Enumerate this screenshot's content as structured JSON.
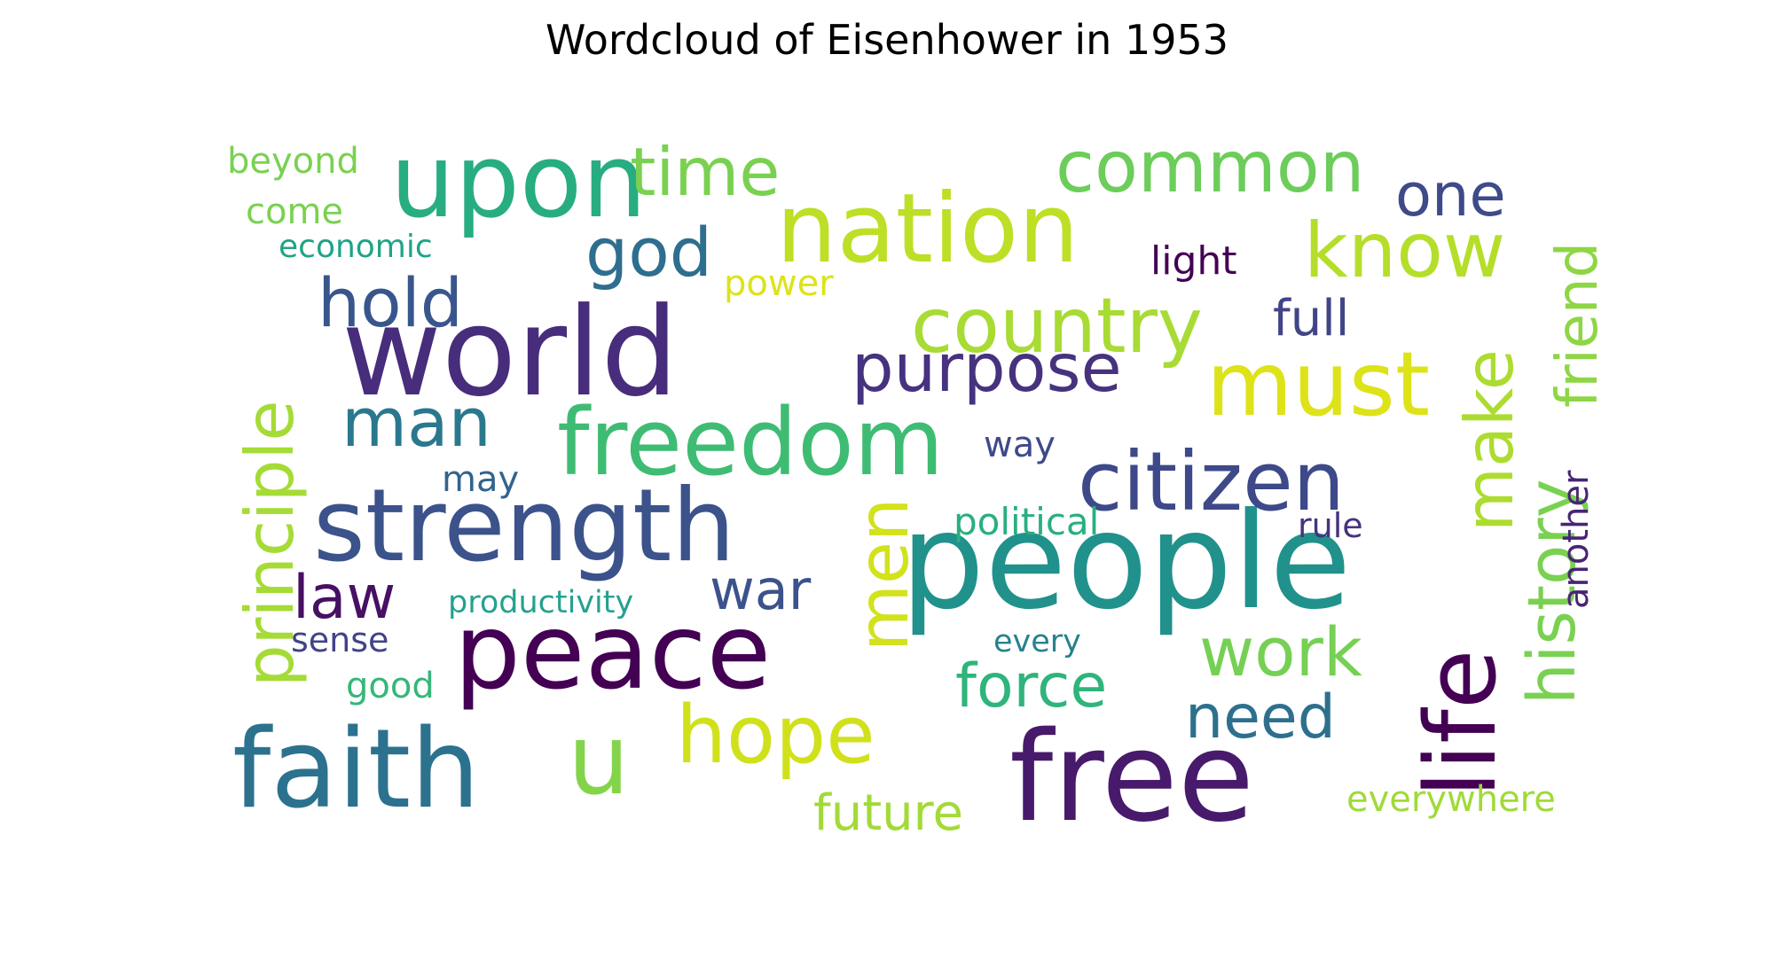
{
  "chart_data": {
    "type": "wordcloud",
    "title": "Wordcloud of Eisenhower in 1953",
    "words": [
      {
        "text": "people",
        "color": "#21918c"
      },
      {
        "text": "free",
        "color": "#481a6c"
      },
      {
        "text": "world",
        "color": "#472d7b"
      },
      {
        "text": "peace",
        "color": "#440154"
      },
      {
        "text": "faith",
        "color": "#2c728e"
      },
      {
        "text": "strength",
        "color": "#3b528b"
      },
      {
        "text": "nation",
        "color": "#bddf26"
      },
      {
        "text": "upon",
        "color": "#27ad81"
      },
      {
        "text": "freedom",
        "color": "#3fbc73"
      },
      {
        "text": "must",
        "color": "#dde318"
      },
      {
        "text": "life",
        "color": "#440154"
      },
      {
        "text": "citizen",
        "color": "#3e4989"
      },
      {
        "text": "country",
        "color": "#a8db34"
      },
      {
        "text": "hope",
        "color": "#d0e11c"
      },
      {
        "text": "know",
        "color": "#b5de2b"
      },
      {
        "text": "common",
        "color": "#6ccd5a"
      },
      {
        "text": "purpose",
        "color": "#46327e"
      },
      {
        "text": "time",
        "color": "#7ad151"
      },
      {
        "text": "principle",
        "color": "#a5db36"
      },
      {
        "text": "history",
        "color": "#7ad151"
      },
      {
        "text": "make",
        "color": "#addc30"
      },
      {
        "text": "hold",
        "color": "#39568c"
      },
      {
        "text": "god",
        "color": "#2e6e8e"
      },
      {
        "text": "man",
        "color": "#2a788e"
      },
      {
        "text": "u",
        "color": "#84d44b"
      },
      {
        "text": "men",
        "color": "#d2e21b"
      },
      {
        "text": "law",
        "color": "#471063"
      },
      {
        "text": "work",
        "color": "#75d054"
      },
      {
        "text": "force",
        "color": "#2fb47c"
      },
      {
        "text": "need",
        "color": "#2d708e"
      },
      {
        "text": "friend",
        "color": "#8ed645"
      },
      {
        "text": "one",
        "color": "#3e4a89"
      },
      {
        "text": "war",
        "color": "#3b528b"
      },
      {
        "text": "future",
        "color": "#a2da37"
      },
      {
        "text": "full",
        "color": "#414487"
      },
      {
        "text": "light",
        "color": "#440154"
      },
      {
        "text": "power",
        "color": "#dde318"
      },
      {
        "text": "way",
        "color": "#3e4a89"
      },
      {
        "text": "political",
        "color": "#29af7f"
      },
      {
        "text": "rule",
        "color": "#46337e"
      },
      {
        "text": "productivity",
        "color": "#25a18e"
      },
      {
        "text": "sense",
        "color": "#414487"
      },
      {
        "text": "good",
        "color": "#35b779"
      },
      {
        "text": "may",
        "color": "#33638d"
      },
      {
        "text": "every",
        "color": "#26828e"
      },
      {
        "text": "another",
        "color": "#482475"
      },
      {
        "text": "everywhere",
        "color": "#a0da39"
      },
      {
        "text": "beyond",
        "color": "#7ad151"
      },
      {
        "text": "come",
        "color": "#7ad151"
      },
      {
        "text": "economic",
        "color": "#20a386"
      }
    ]
  }
}
